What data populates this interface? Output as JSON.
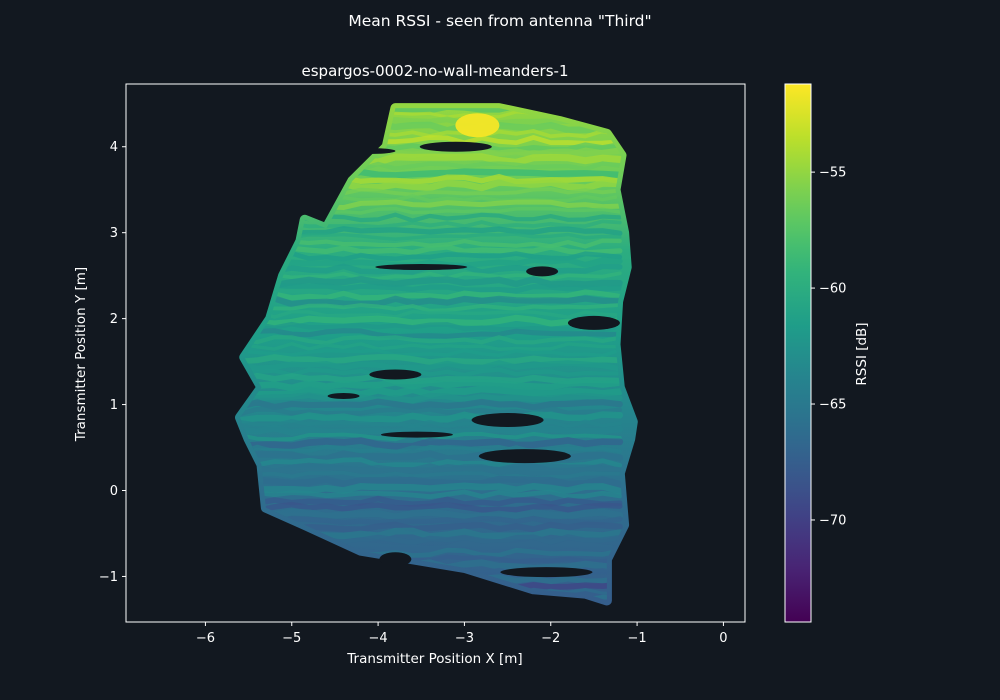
{
  "figure": {
    "suptitle": "Mean RSSI - seen from antenna \"Third\""
  },
  "chart_data": {
    "type": "scatter",
    "title": "espargos-0002-no-wall-meanders-1",
    "xlabel": "Transmitter Position X [m]",
    "ylabel": "Transmitter Position Y [m]",
    "xlim": [
      -6.92,
      0.25
    ],
    "ylim": [
      -1.53,
      4.73
    ],
    "xticks": [
      -6,
      -5,
      -4,
      -3,
      -2,
      -1,
      0
    ],
    "yticks": [
      -1,
      0,
      1,
      2,
      3,
      4
    ],
    "colorbar": {
      "label": "RSSI [dB]",
      "colormap": "viridis",
      "range": [
        -74.4,
        -51.2
      ],
      "ticks": [
        -55,
        -60,
        -65,
        -70
      ]
    },
    "grid": false,
    "region_outline": [
      [
        -3.8,
        4.45
      ],
      [
        -2.6,
        4.45
      ],
      [
        -1.9,
        4.3
      ],
      [
        -1.35,
        4.15
      ],
      [
        -1.18,
        3.9
      ],
      [
        -1.25,
        3.5
      ],
      [
        -1.15,
        3.0
      ],
      [
        -1.12,
        2.6
      ],
      [
        -1.22,
        2.2
      ],
      [
        -1.25,
        1.7
      ],
      [
        -1.2,
        1.2
      ],
      [
        -1.05,
        0.8
      ],
      [
        -1.08,
        0.6
      ],
      [
        -1.2,
        0.2
      ],
      [
        -1.15,
        -0.4
      ],
      [
        -1.35,
        -0.8
      ],
      [
        -1.35,
        -1.28
      ],
      [
        -1.6,
        -1.2
      ],
      [
        -2.2,
        -1.15
      ],
      [
        -3.0,
        -0.9
      ],
      [
        -4.2,
        -0.7
      ],
      [
        -4.85,
        -0.4
      ],
      [
        -5.3,
        -0.2
      ],
      [
        -5.35,
        0.3
      ],
      [
        -5.5,
        0.6
      ],
      [
        -5.6,
        0.85
      ],
      [
        -5.35,
        1.2
      ],
      [
        -5.55,
        1.55
      ],
      [
        -5.25,
        2.0
      ],
      [
        -5.1,
        2.5
      ],
      [
        -4.9,
        2.9
      ],
      [
        -4.85,
        3.15
      ],
      [
        -4.6,
        3.05
      ],
      [
        -4.3,
        3.6
      ],
      [
        -3.9,
        4.0
      ]
    ],
    "gradient_stops": [
      {
        "y": 4.45,
        "rssi": -55
      },
      {
        "y": 3.6,
        "rssi": -56.5
      },
      {
        "y": 2.8,
        "rssi": -60
      },
      {
        "y": 1.8,
        "rssi": -61.5
      },
      {
        "y": 1.0,
        "rssi": -63.5
      },
      {
        "y": 0.0,
        "rssi": -66
      },
      {
        "y": -1.28,
        "rssi": -67.5
      }
    ],
    "highlight": {
      "x": -2.85,
      "y": 4.25,
      "rssi": -51.5
    },
    "gaps": [
      [
        -4.4,
        1.1
      ],
      [
        -3.8,
        1.35
      ],
      [
        -2.5,
        0.82
      ],
      [
        -3.5,
        2.6
      ],
      [
        -2.1,
        2.55
      ],
      [
        -1.5,
        1.95
      ],
      [
        -3.55,
        0.65
      ],
      [
        -2.05,
        -0.95
      ],
      [
        -3.8,
        -0.8
      ],
      [
        -4.1,
        3.95
      ],
      [
        -3.1,
        4.0
      ],
      [
        -2.3,
        0.4
      ]
    ]
  }
}
